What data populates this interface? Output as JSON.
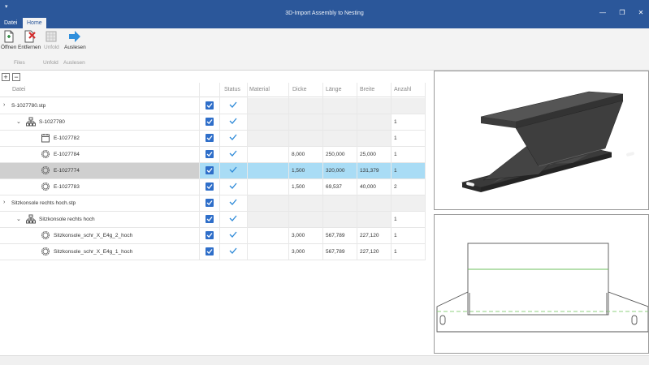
{
  "window": {
    "title": "3D-Import Assembly to Nesting",
    "minimize": "—",
    "maximize": "❐",
    "close": "✕",
    "app_icon": "▾"
  },
  "menu": {
    "tabs": [
      {
        "label": "Datei"
      },
      {
        "label": "Home"
      }
    ]
  },
  "ribbon": {
    "buttons": [
      {
        "label": "Öffnen",
        "icon": "open-file-icon"
      },
      {
        "label": "Entfernen",
        "icon": "remove-file-icon"
      },
      {
        "label": "Unfold",
        "icon": "unfold-icon"
      },
      {
        "label": "Auslesen",
        "icon": "arrow-right-icon"
      }
    ],
    "groups": [
      {
        "label": "Files"
      },
      {
        "label": "Unfold"
      },
      {
        "label": "Auslesen"
      }
    ]
  },
  "tree_controls": {
    "expand": "+",
    "collapse": "−"
  },
  "table": {
    "columns": [
      "Datei",
      "Status",
      "Material",
      "Dicke",
      "Länge",
      "Breite",
      "Anzahl"
    ],
    "rows": [
      {
        "name": "S-1027780.stp",
        "caret": "›",
        "dicke": "",
        "laenge": "",
        "breite": "",
        "anzahl": ""
      },
      {
        "name": "S-1027780",
        "caret": "⌄",
        "dicke": "",
        "laenge": "",
        "breite": "",
        "anzahl": "1"
      },
      {
        "name": "E-1027782",
        "caret": "",
        "dicke": "",
        "laenge": "",
        "breite": "",
        "anzahl": "1"
      },
      {
        "name": "E-1027784",
        "caret": "",
        "dicke": "8,000",
        "laenge": "250,000",
        "breite": "25,000",
        "anzahl": "1"
      },
      {
        "name": "E-1027774",
        "caret": "",
        "dicke": "1,500",
        "laenge": "320,000",
        "breite": "131,379",
        "anzahl": "1"
      },
      {
        "name": "E-1027783",
        "caret": "",
        "dicke": "1,500",
        "laenge": "69,537",
        "breite": "40,000",
        "anzahl": "2"
      },
      {
        "name": "Sitzkonsole rechts hoch.stp",
        "caret": "›",
        "dicke": "",
        "laenge": "",
        "breite": "",
        "anzahl": ""
      },
      {
        "name": "Sitzkonsole rechts hoch",
        "caret": "⌄",
        "dicke": "",
        "laenge": "",
        "breite": "",
        "anzahl": "1"
      },
      {
        "name": "Sitzkonsole_schr_X_E4g_2_hoch",
        "caret": "",
        "dicke": "3,000",
        "laenge": "567,789",
        "breite": "227,120",
        "anzahl": "1"
      },
      {
        "name": "Sitzkonsole_schr_X_E4g_1_hoch",
        "caret": "",
        "dicke": "3,000",
        "laenge": "567,789",
        "breite": "227,120",
        "anzahl": "1"
      }
    ]
  },
  "colors": {
    "titlebar": "#2b579a",
    "checkbox": "#2e6ec9",
    "check": "#2e8ad8",
    "selection": "#a9dcf5",
    "part": "#3d3d3d"
  }
}
